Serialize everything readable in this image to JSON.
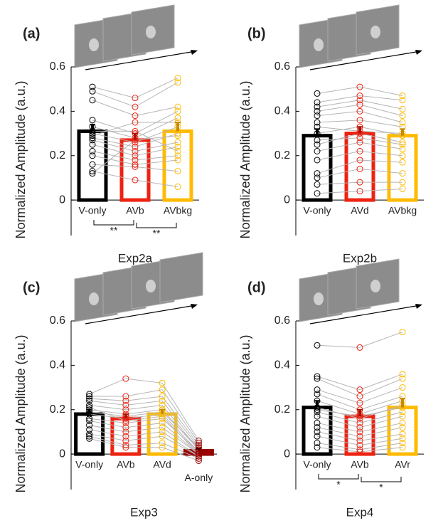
{
  "chart_data": [
    {
      "type": "bar",
      "panel": "(a)",
      "xlabel": "Exp2a",
      "ylabel": "Normalized Amplitude (a.u.)",
      "categories": [
        "V-only",
        "AVb",
        "AVbkg"
      ],
      "colors": [
        "#000000",
        "#ee2211",
        "#ffbb00"
      ],
      "values": [
        0.31,
        0.27,
        0.31
      ],
      "errors": [
        0.03,
        0.03,
        0.04
      ],
      "subjects": [
        [
          0.51,
          0.46,
          0.55
        ],
        [
          0.49,
          0.42,
          0.53
        ],
        [
          0.45,
          0.38,
          0.42
        ],
        [
          0.36,
          0.3,
          0.4
        ],
        [
          0.33,
          0.28,
          0.37
        ],
        [
          0.3,
          0.26,
          0.33
        ],
        [
          0.28,
          0.24,
          0.3
        ],
        [
          0.27,
          0.22,
          0.26
        ],
        [
          0.25,
          0.2,
          0.24
        ],
        [
          0.22,
          0.18,
          0.2
        ],
        [
          0.2,
          0.16,
          0.18
        ],
        [
          0.16,
          0.15,
          0.13
        ],
        [
          0.13,
          0.09,
          0.06
        ],
        [
          0.12,
          0.27,
          0.29
        ],
        [
          0.29,
          0.35,
          0.35
        ],
        [
          0.31,
          0.31,
          0.22
        ]
      ],
      "comparisons": [
        {
          "pair": [
            "V-only",
            "AVb"
          ],
          "label": "**"
        },
        {
          "pair": [
            "AVb",
            "AVbkg"
          ],
          "label": "**"
        }
      ],
      "ylim": [
        -0.16,
        0.6
      ],
      "yticks": [
        0,
        0.2,
        0.4,
        0.6
      ]
    },
    {
      "type": "bar",
      "panel": "(b)",
      "xlabel": "Exp2b",
      "ylabel": "Normalized Amplitude (a.u.)",
      "categories": [
        "V-only",
        "AVd",
        "AVbkg"
      ],
      "colors": [
        "#000000",
        "#ee2211",
        "#ffbb00"
      ],
      "values": [
        0.29,
        0.3,
        0.29
      ],
      "errors": [
        0.03,
        0.03,
        0.03
      ],
      "subjects": [
        [
          0.48,
          0.51,
          0.47
        ],
        [
          0.44,
          0.47,
          0.45
        ],
        [
          0.42,
          0.45,
          0.41
        ],
        [
          0.4,
          0.43,
          0.38
        ],
        [
          0.38,
          0.4,
          0.35
        ],
        [
          0.35,
          0.36,
          0.33
        ],
        [
          0.3,
          0.33,
          0.29
        ],
        [
          0.25,
          0.3,
          0.26
        ],
        [
          0.22,
          0.26,
          0.23
        ],
        [
          0.18,
          0.22,
          0.2
        ],
        [
          0.12,
          0.18,
          0.17
        ],
        [
          0.1,
          0.14,
          0.12
        ],
        [
          0.07,
          0.08,
          0.08
        ],
        [
          0.03,
          0.04,
          0.05
        ],
        [
          0.33,
          0.31,
          0.3
        ],
        [
          0.27,
          0.28,
          0.25
        ]
      ],
      "comparisons": [],
      "ylim": [
        -0.16,
        0.6
      ],
      "yticks": [
        0,
        0.2,
        0.4,
        0.6
      ]
    },
    {
      "type": "bar",
      "panel": "(c)",
      "xlabel": "Exp3",
      "ylabel": "Normalized Amplitude (a.u.)",
      "categories": [
        "V-only",
        "AVb",
        "AVd",
        "A-only"
      ],
      "colors": [
        "#000000",
        "#ee2211",
        "#ffbb00",
        "#990000"
      ],
      "values": [
        0.18,
        0.16,
        0.18,
        0.015
      ],
      "errors": [
        0.02,
        0.02,
        0.02,
        0.01
      ],
      "subjects": [
        [
          0.27,
          0.34,
          0.32,
          0.06
        ],
        [
          0.26,
          0.26,
          0.29,
          0.05
        ],
        [
          0.25,
          0.24,
          0.26,
          0.04
        ],
        [
          0.24,
          0.22,
          0.24,
          0.03
        ],
        [
          0.22,
          0.2,
          0.22,
          0.02
        ],
        [
          0.2,
          0.18,
          0.2,
          0.02
        ],
        [
          0.18,
          0.16,
          0.18,
          0.01
        ],
        [
          0.16,
          0.14,
          0.16,
          0.01
        ],
        [
          0.15,
          0.12,
          0.14,
          0
        ],
        [
          0.13,
          0.1,
          0.12,
          0
        ],
        [
          0.11,
          0.08,
          0.1,
          -0.01
        ],
        [
          0.09,
          0.06,
          0.08,
          -0.01
        ],
        [
          0.08,
          0.04,
          0.05,
          -0.02
        ],
        [
          0.07,
          0.03,
          0.03,
          -0.03
        ],
        [
          0.19,
          0.17,
          0.19,
          0.03
        ],
        [
          0.21,
          0.15,
          0.17,
          0
        ]
      ],
      "comparisons": [],
      "ylim": [
        -0.16,
        0.6
      ],
      "yticks": [
        0,
        0.2,
        0.4,
        0.6
      ]
    },
    {
      "type": "bar",
      "panel": "(d)",
      "xlabel": "Exp4",
      "ylabel": "Normalized Amplitude (a.u.)",
      "categories": [
        "V-only",
        "AVb",
        "AVr"
      ],
      "colors": [
        "#000000",
        "#ee2211",
        "#ffbb00"
      ],
      "values": [
        0.21,
        0.17,
        0.21
      ],
      "errors": [
        0.03,
        0.03,
        0.04
      ],
      "subjects": [
        [
          0.49,
          0.48,
          0.55
        ],
        [
          0.35,
          0.29,
          0.36
        ],
        [
          0.34,
          0.26,
          0.34
        ],
        [
          0.29,
          0.23,
          0.3
        ],
        [
          0.27,
          0.2,
          0.26
        ],
        [
          0.24,
          0.18,
          0.24
        ],
        [
          0.21,
          0.16,
          0.22
        ],
        [
          0.19,
          0.14,
          0.19
        ],
        [
          0.17,
          0.12,
          0.17
        ],
        [
          0.14,
          0.1,
          0.14
        ],
        [
          0.12,
          0.08,
          0.12
        ],
        [
          0.1,
          0.06,
          0.09
        ],
        [
          0.08,
          0.04,
          0.07
        ],
        [
          0.05,
          0.02,
          0.05
        ],
        [
          0.03,
          0.01,
          0.03
        ],
        [
          0.2,
          0.17,
          0.21
        ]
      ],
      "comparisons": [
        {
          "pair": [
            "V-only",
            "AVb"
          ],
          "label": "*"
        },
        {
          "pair": [
            "AVb",
            "AVr"
          ],
          "label": "*"
        }
      ],
      "ylim": [
        -0.16,
        0.6
      ],
      "yticks": [
        0,
        0.2,
        0.4,
        0.6
      ]
    }
  ]
}
